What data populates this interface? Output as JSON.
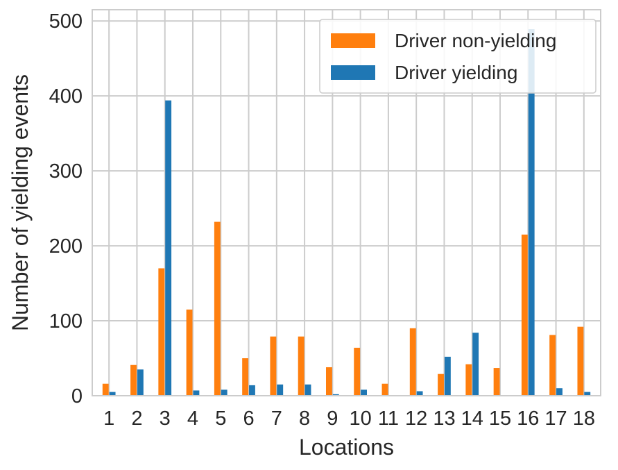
{
  "chart_data": {
    "type": "bar",
    "xlabel": "Locations",
    "ylabel": "Number of yielding events",
    "ylim": [
      0,
      515
    ],
    "yticks": [
      0,
      100,
      200,
      300,
      400,
      500
    ],
    "grid": true,
    "legend_position": "top-right",
    "categories": [
      "1",
      "2",
      "3",
      "4",
      "5",
      "6",
      "7",
      "8",
      "9",
      "10",
      "11",
      "12",
      "13",
      "14",
      "15",
      "16",
      "17",
      "18"
    ],
    "series": [
      {
        "name": "Driver non-yielding",
        "color": "#ff7f0e",
        "values": [
          16,
          41,
          170,
          115,
          232,
          50,
          79,
          79,
          38,
          64,
          16,
          90,
          29,
          42,
          37,
          215,
          81,
          92
        ]
      },
      {
        "name": "Driver yielding",
        "color": "#1f77b4",
        "values": [
          5,
          35,
          394,
          7,
          8,
          14,
          15,
          15,
          2,
          8,
          0,
          6,
          52,
          84,
          0,
          489,
          10,
          5
        ]
      }
    ]
  }
}
